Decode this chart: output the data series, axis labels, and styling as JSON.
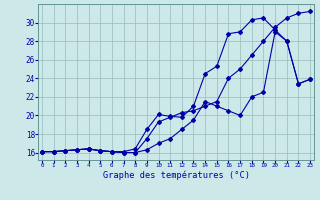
{
  "xlabel": "Graphe des températures (°C)",
  "x_ticks": [
    0,
    1,
    2,
    3,
    4,
    5,
    6,
    7,
    8,
    9,
    10,
    11,
    12,
    13,
    14,
    15,
    16,
    17,
    18,
    19,
    20,
    21,
    22,
    23
  ],
  "ylim": [
    15.2,
    32.0
  ],
  "xlim": [
    -0.3,
    23.3
  ],
  "yticks": [
    16,
    18,
    20,
    22,
    24,
    26,
    28,
    30
  ],
  "bg_color": "#cce8e8",
  "grid_color": "#99bbbb",
  "line_color": "#0000aa",
  "line1_y": [
    16.1,
    16.1,
    16.2,
    16.3,
    16.4,
    16.2,
    16.1,
    16.0,
    16.0,
    17.5,
    19.3,
    19.8,
    20.3,
    20.5,
    21.0,
    21.5,
    24.0,
    25.0,
    26.5,
    28.0,
    29.5,
    30.5,
    31.0,
    31.2
  ],
  "line2_y": [
    16.1,
    16.1,
    16.2,
    16.3,
    16.4,
    16.2,
    16.1,
    16.1,
    16.4,
    18.5,
    20.1,
    19.9,
    19.8,
    21.0,
    24.5,
    25.3,
    28.8,
    29.0,
    30.3,
    30.5,
    29.2,
    28.0,
    23.4,
    23.9
  ],
  "line3_y": [
    16.1,
    16.1,
    16.2,
    16.3,
    16.4,
    16.2,
    16.1,
    16.0,
    16.0,
    16.3,
    17.0,
    17.5,
    18.5,
    19.5,
    21.5,
    21.0,
    20.5,
    20.0,
    22.0,
    22.5,
    29.0,
    28.0,
    23.4,
    23.9
  ]
}
